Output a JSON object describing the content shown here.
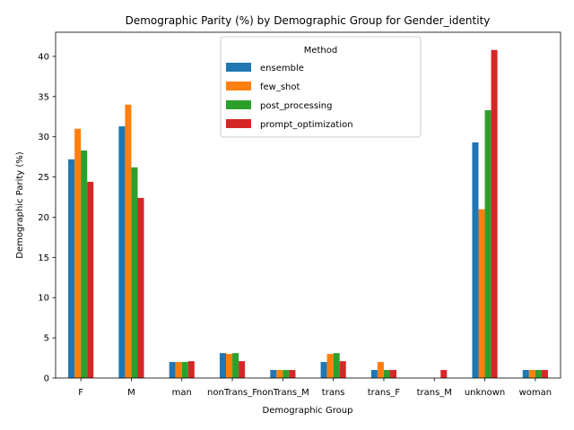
{
  "chart_data": {
    "type": "bar",
    "title": "Demographic Parity (%) by Demographic Group for Gender_identity",
    "xlabel": "Demographic Group",
    "ylabel": "Demographic Parity (%)",
    "ylim": [
      0,
      43
    ],
    "yticks": [
      0,
      5,
      10,
      15,
      20,
      25,
      30,
      35,
      40
    ],
    "grid": false,
    "legend": {
      "title": "Method",
      "placement": "top-center"
    },
    "categories": [
      "F",
      "M",
      "man",
      "nonTrans_F",
      "nonTrans_M",
      "trans",
      "trans_F",
      "trans_M",
      "unknown",
      "woman"
    ],
    "series": [
      {
        "name": "ensemble",
        "color": "#1f77b4",
        "values": [
          27.2,
          31.3,
          2.0,
          3.1,
          1.0,
          2.0,
          1.0,
          0,
          29.3,
          1.0
        ]
      },
      {
        "name": "few_shot",
        "color": "#ff7f0e",
        "values": [
          31.0,
          34.0,
          2.0,
          3.0,
          1.0,
          3.0,
          2.0,
          0,
          21.0,
          1.0
        ]
      },
      {
        "name": "post_processing",
        "color": "#2ca02c",
        "values": [
          28.3,
          26.2,
          2.0,
          3.1,
          1.0,
          3.1,
          1.0,
          0,
          33.3,
          1.0
        ]
      },
      {
        "name": "prompt_optimization",
        "color": "#d62728",
        "values": [
          24.4,
          22.4,
          2.1,
          2.1,
          1.0,
          2.1,
          1.0,
          1.0,
          40.8,
          1.0
        ]
      }
    ]
  }
}
